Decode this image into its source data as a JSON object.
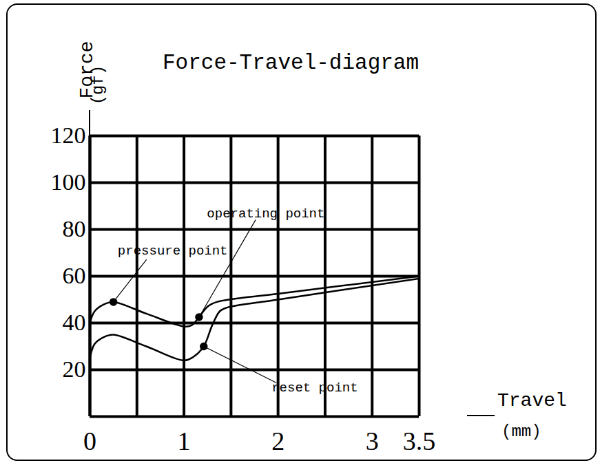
{
  "chart_data": {
    "type": "line",
    "title": "Force-Travel-diagram",
    "y_label": [
      "Force",
      "(gf)"
    ],
    "x_label": [
      "Travel",
      "(mm)"
    ],
    "xlim": [
      0,
      3.5
    ],
    "xticks": [
      0,
      {
        "value": 0.5,
        "label": null
      },
      1,
      {
        "value": 1.5,
        "label": null
      },
      2,
      {
        "value": 2.5,
        "label": null
      },
      3,
      3.5
    ],
    "ylim": [
      0,
      120
    ],
    "yticks": [
      20,
      40,
      60,
      80,
      100,
      120
    ],
    "grid": true,
    "series": [
      {
        "color": "#000000",
        "line_style": "solid",
        "x": [
          0,
          0.05,
          0.15,
          0.25,
          0.6,
          1.0,
          1.08,
          1.16,
          1.25,
          1.35,
          2.0,
          3.5
        ],
        "values": [
          40,
          45,
          48,
          49,
          44,
          38.5,
          39,
          42.5,
          47,
          49,
          52.5,
          60
        ]
      },
      {
        "color": "#000000",
        "line_style": "solid",
        "x": [
          0,
          0.05,
          0.15,
          0.25,
          0.6,
          1.0,
          1.1,
          1.21,
          1.3,
          1.38,
          1.45,
          2.0,
          3.5
        ],
        "values": [
          25,
          31,
          34,
          35,
          30,
          24,
          25.5,
          30,
          39,
          45,
          46.5,
          50,
          59
        ]
      }
    ],
    "annotations": [
      {
        "text": "pressure point",
        "x": 0.25,
        "y": 49,
        "line_x": 0.6,
        "line_y": 67,
        "text_x": 0.88,
        "text_y": 71
      },
      {
        "text": "operating point",
        "x": 1.16,
        "y": 42.5,
        "line_x": 1.76,
        "line_y": 84,
        "text_x": 1.87,
        "text_y": 87
      },
      {
        "text": "reset point",
        "x": 1.21,
        "y": 30,
        "line_x": 1.98,
        "line_y": 14.5,
        "text_x": 2.39,
        "text_y": 12.5
      }
    ]
  }
}
